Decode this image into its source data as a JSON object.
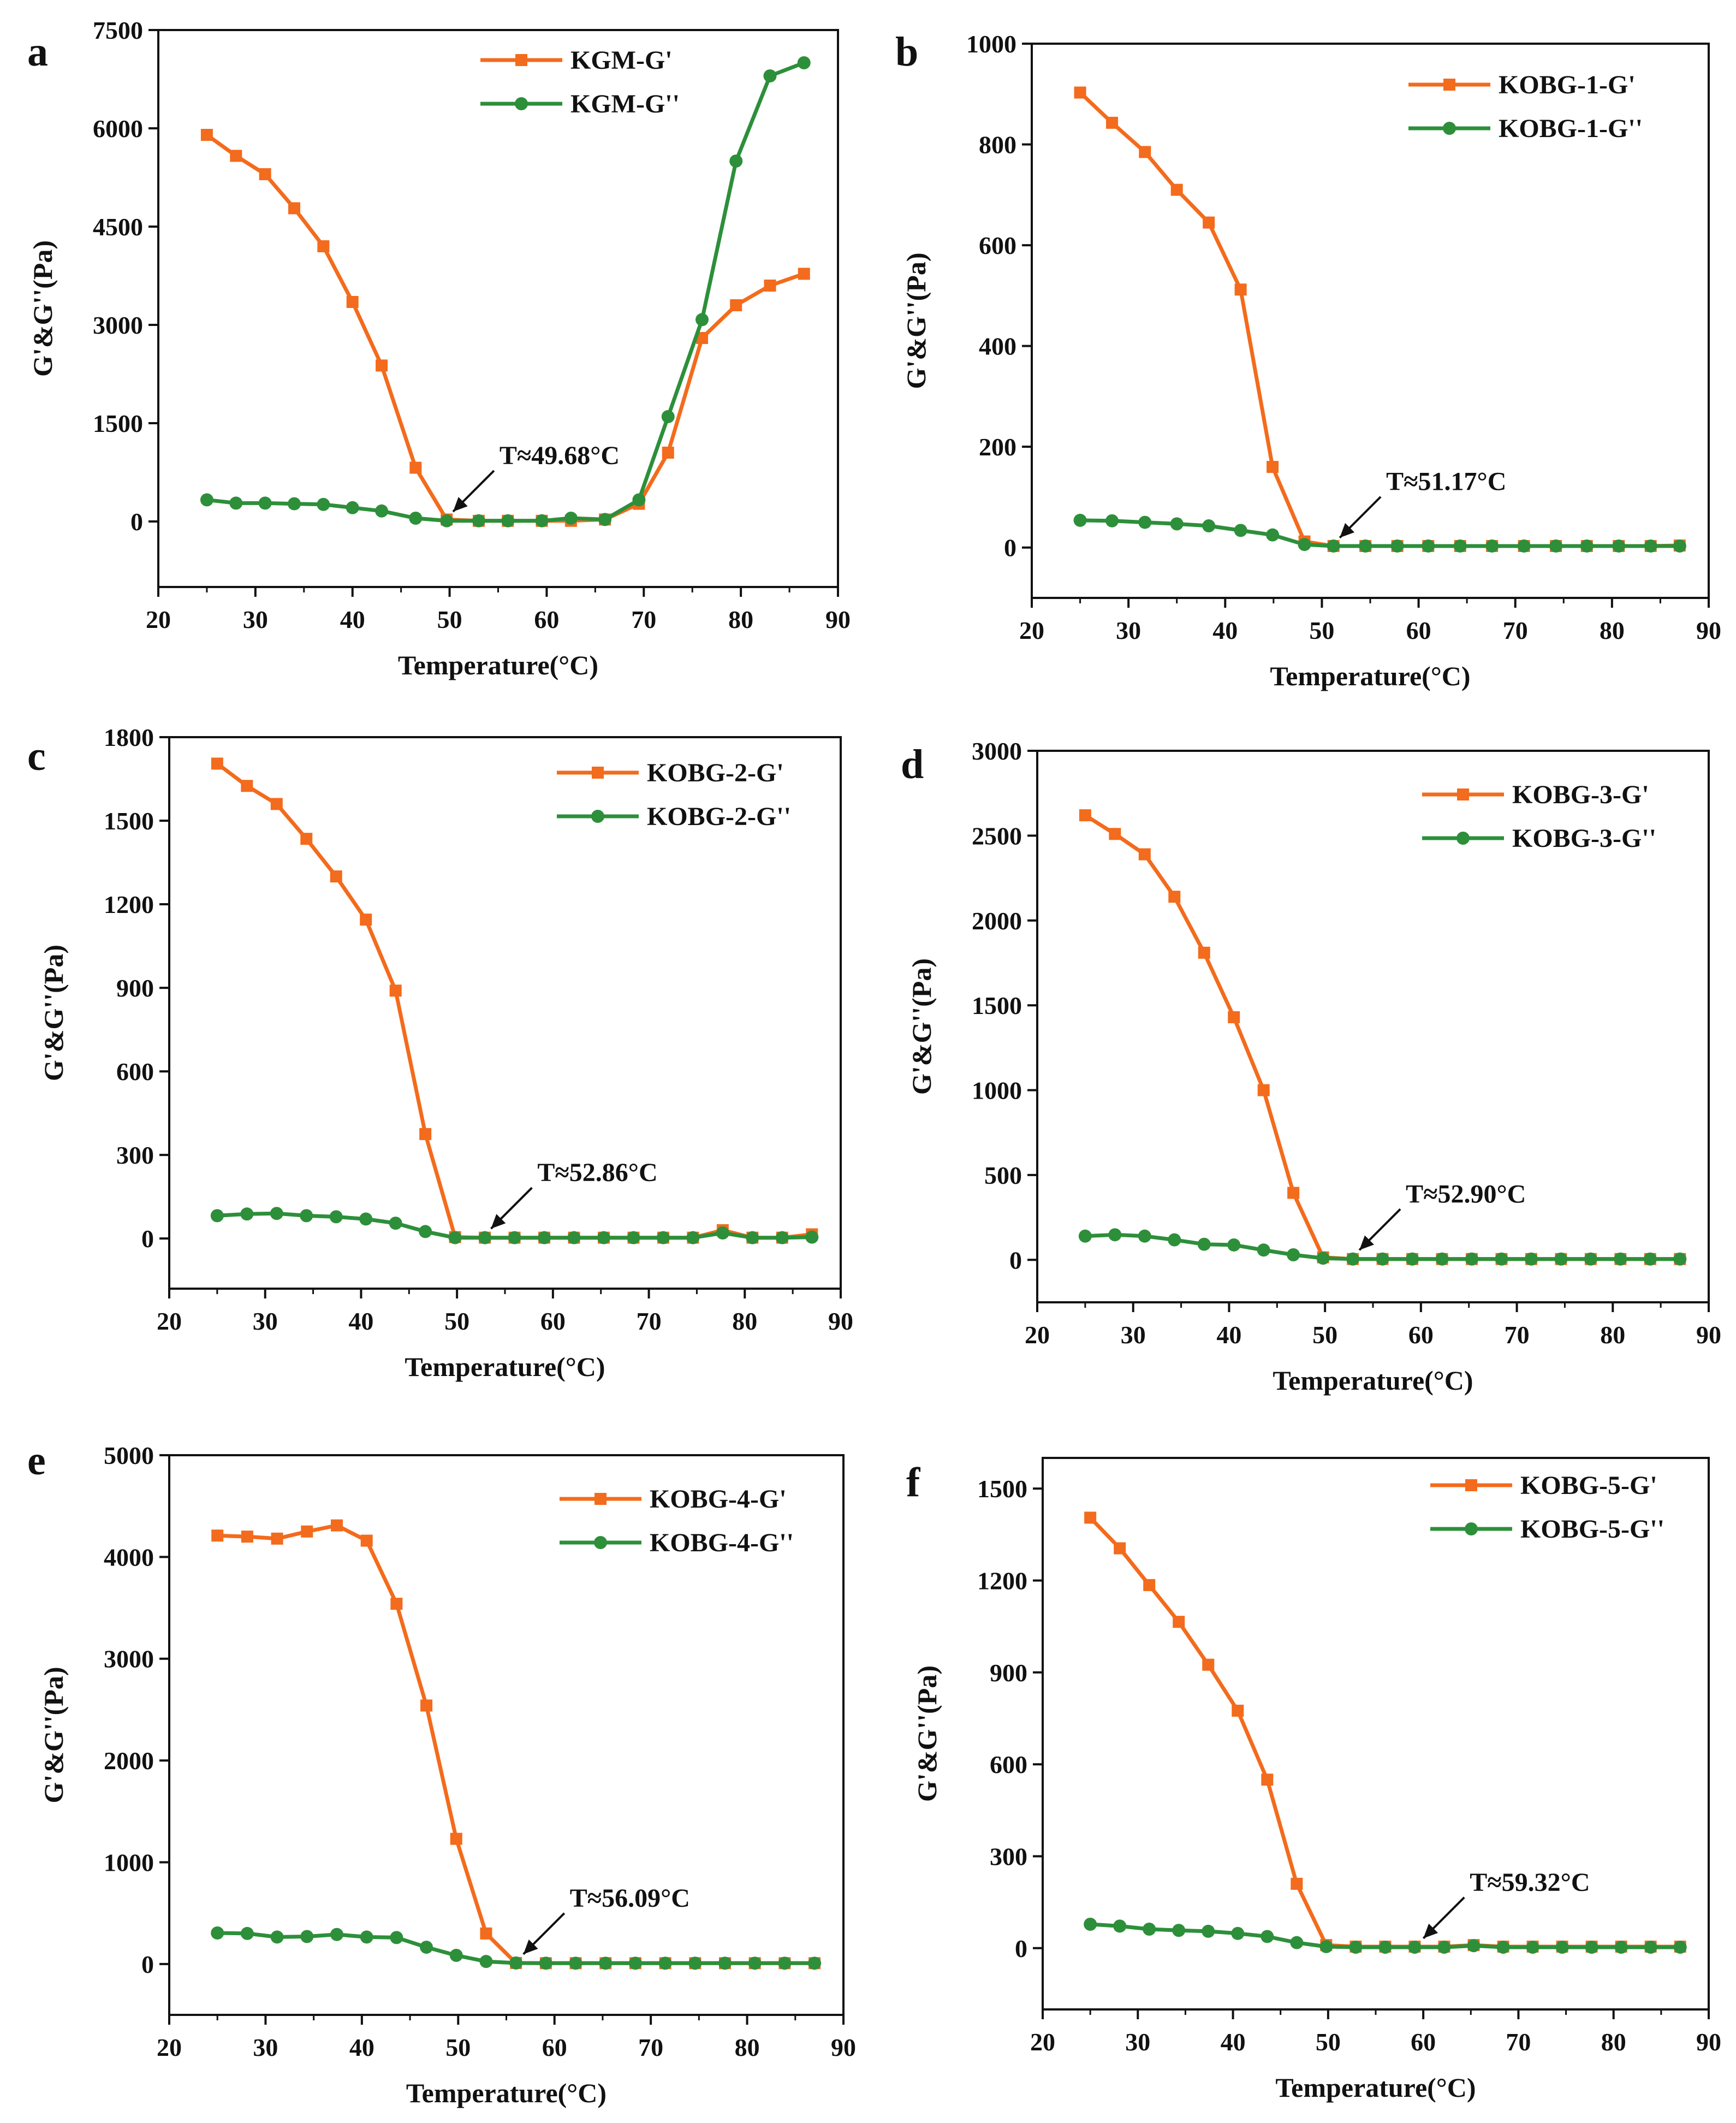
{
  "figure": {
    "colors": {
      "g_prime": "#f36b1c",
      "g_double_prime": "#2d8f3a",
      "axis": "#111111"
    },
    "panels": [
      {
        "letter": "a"
      },
      {
        "letter": "b"
      },
      {
        "letter": "c"
      },
      {
        "letter": "d"
      },
      {
        "letter": "e"
      },
      {
        "letter": "f"
      }
    ]
  },
  "chart_data": [
    {
      "type": "line",
      "panel": "a",
      "xlabel": "Temperature(°C)",
      "ylabel": "G'&G''(Pa)",
      "xlim": [
        20,
        90
      ],
      "ylim": [
        -1000,
        7500
      ],
      "xticks": [
        20,
        30,
        40,
        50,
        60,
        70,
        80,
        90
      ],
      "yticks": [
        0,
        1500,
        3000,
        4500,
        6000,
        7500
      ],
      "legend_position": "top-right",
      "annotation": {
        "text": "T≈49.68°C",
        "x": 49.68,
        "y": 0
      },
      "series": [
        {
          "name": "KGM-G'",
          "marker": "square",
          "x": [
            25,
            28,
            31,
            34,
            37,
            40,
            43,
            46.5,
            49.7,
            53,
            56,
            59.5,
            62.5,
            66,
            69.5,
            72.5,
            76,
            79.5,
            83,
            86.5
          ],
          "y": [
            5900,
            5580,
            5300,
            4780,
            4200,
            3350,
            2380,
            820,
            30,
            10,
            10,
            10,
            10,
            30,
            270,
            1050,
            2800,
            3300,
            3600,
            3780
          ]
        },
        {
          "name": "KGM-G''",
          "marker": "circle",
          "x": [
            25,
            28,
            31,
            34,
            37,
            40,
            43,
            46.5,
            49.7,
            53,
            56,
            59.5,
            62.5,
            66,
            69.5,
            72.5,
            76,
            79.5,
            83,
            86.5
          ],
          "y": [
            330,
            280,
            280,
            270,
            260,
            210,
            160,
            50,
            10,
            10,
            10,
            10,
            50,
            30,
            330,
            1600,
            3080,
            5500,
            6800,
            7000
          ]
        }
      ]
    },
    {
      "type": "line",
      "panel": "b",
      "xlabel": "Temperature(°C)",
      "ylabel": "G'&G''(Pa)",
      "xlim": [
        20,
        90
      ],
      "ylim": [
        -100,
        1000
      ],
      "xticks": [
        20,
        30,
        40,
        50,
        60,
        70,
        80,
        90
      ],
      "yticks": [
        0,
        200,
        400,
        600,
        800,
        1000
      ],
      "legend_position": "top-right",
      "annotation": {
        "text": "T≈51.17°C",
        "x": 51.17,
        "y": 0
      },
      "series": [
        {
          "name": "KOBG-1-G'",
          "marker": "square",
          "x": [
            25,
            28.3,
            31.7,
            35,
            38.3,
            41.6,
            44.9,
            48.2,
            51.2,
            54.5,
            57.8,
            61,
            64.3,
            67.6,
            70.9,
            74.2,
            77.4,
            80.7,
            84,
            87
          ],
          "y": [
            903,
            843,
            785,
            710,
            645,
            512,
            160,
            12,
            3,
            3,
            3,
            3,
            3,
            3,
            3,
            3,
            3,
            3,
            3,
            4
          ]
        },
        {
          "name": "KOBG-1-G''",
          "marker": "circle",
          "x": [
            25,
            28.3,
            31.7,
            35,
            38.3,
            41.6,
            44.9,
            48.2,
            51.2,
            54.5,
            57.8,
            61,
            64.3,
            67.6,
            70.9,
            74.2,
            77.4,
            80.7,
            84,
            87
          ],
          "y": [
            54,
            53,
            50,
            47,
            43,
            34,
            25,
            6,
            3,
            3,
            3,
            3,
            3,
            3,
            3,
            3,
            3,
            3,
            3,
            3
          ]
        }
      ]
    },
    {
      "type": "line",
      "panel": "c",
      "xlabel": "Temperature(°C)",
      "ylabel": "G'&G''(Pa)",
      "xlim": [
        20,
        90
      ],
      "ylim": [
        -180,
        1800
      ],
      "xticks": [
        20,
        30,
        40,
        50,
        60,
        70,
        80,
        90
      ],
      "yticks": [
        0,
        300,
        600,
        900,
        1200,
        1500,
        1800
      ],
      "legend_position": "top-right",
      "annotation": {
        "text": "T≈52.86°C",
        "x": 52.86,
        "y": 0
      },
      "series": [
        {
          "name": "KOBG-2-G'",
          "marker": "square",
          "x": [
            25,
            28.1,
            31.2,
            34.3,
            37.4,
            40.5,
            43.6,
            46.7,
            49.8,
            52.9,
            56,
            59.1,
            62.2,
            65.3,
            68.4,
            71.5,
            74.6,
            77.7,
            80.8,
            83.9,
            87
          ],
          "y": [
            1705,
            1625,
            1560,
            1435,
            1300,
            1145,
            890,
            375,
            5,
            3,
            3,
            3,
            3,
            3,
            3,
            3,
            3,
            30,
            3,
            3,
            15
          ]
        },
        {
          "name": "KOBG-2-G''",
          "marker": "circle",
          "x": [
            25,
            28.1,
            31.2,
            34.3,
            37.4,
            40.5,
            43.6,
            46.7,
            49.8,
            52.9,
            56,
            59.1,
            62.2,
            65.3,
            68.4,
            71.5,
            74.6,
            77.7,
            80.8,
            83.9,
            87
          ],
          "y": [
            82,
            88,
            90,
            82,
            78,
            70,
            55,
            25,
            3,
            3,
            3,
            3,
            3,
            3,
            3,
            3,
            3,
            20,
            3,
            3,
            5
          ]
        }
      ]
    },
    {
      "type": "line",
      "panel": "d",
      "xlabel": "Temperature(°C)",
      "ylabel": "G'&G''(Pa)",
      "xlim": [
        20,
        90
      ],
      "ylim": [
        -250,
        3000
      ],
      "xticks": [
        20,
        30,
        40,
        50,
        60,
        70,
        80,
        90
      ],
      "yticks": [
        0,
        500,
        1000,
        1500,
        2000,
        2500,
        3000
      ],
      "legend_position": "top-right",
      "annotation": {
        "text": "T≈52.90°C",
        "x": 52.9,
        "y": 0
      },
      "series": [
        {
          "name": "KOBG-3-G'",
          "marker": "square",
          "x": [
            25,
            28.1,
            31.2,
            34.3,
            37.4,
            40.5,
            43.6,
            46.7,
            49.8,
            52.9,
            56,
            59.1,
            62.2,
            65.3,
            68.4,
            71.5,
            74.6,
            77.7,
            80.8,
            83.9,
            87
          ],
          "y": [
            2620,
            2510,
            2390,
            2140,
            1810,
            1430,
            1000,
            395,
            15,
            5,
            5,
            5,
            5,
            5,
            5,
            5,
            5,
            5,
            5,
            5,
            5
          ]
        },
        {
          "name": "KOBG-3-G''",
          "marker": "circle",
          "x": [
            25,
            28.1,
            31.2,
            34.3,
            37.4,
            40.5,
            43.6,
            46.7,
            49.8,
            52.9,
            56,
            59.1,
            62.2,
            65.3,
            68.4,
            71.5,
            74.6,
            77.7,
            80.8,
            83.9,
            87
          ],
          "y": [
            140,
            148,
            140,
            118,
            92,
            88,
            58,
            30,
            10,
            5,
            5,
            5,
            5,
            5,
            5,
            5,
            5,
            5,
            5,
            5,
            5
          ]
        }
      ]
    },
    {
      "type": "line",
      "panel": "e",
      "xlabel": "Temperature(°C)",
      "ylabel": "G'&G''(Pa)",
      "xlim": [
        20,
        90
      ],
      "ylim": [
        -500,
        5000
      ],
      "xticks": [
        20,
        30,
        40,
        50,
        60,
        70,
        80,
        90
      ],
      "yticks": [
        0,
        1000,
        2000,
        3000,
        4000,
        5000
      ],
      "legend_position": "top-right",
      "annotation": {
        "text": "T≈56.09°C",
        "x": 56.09,
        "y": 0
      },
      "series": [
        {
          "name": "KOBG-4-G'",
          "marker": "square",
          "x": [
            25,
            28.1,
            31.2,
            34.3,
            37.4,
            40.5,
            43.6,
            46.7,
            49.8,
            52.9,
            56,
            59.1,
            62.2,
            65.3,
            68.4,
            71.5,
            74.6,
            77.7,
            80.8,
            83.9,
            87
          ],
          "y": [
            4210,
            4200,
            4180,
            4250,
            4310,
            4160,
            3540,
            2540,
            1230,
            300,
            10,
            8,
            8,
            8,
            8,
            8,
            8,
            8,
            8,
            8,
            8
          ]
        },
        {
          "name": "KOBG-4-G''",
          "marker": "circle",
          "x": [
            25,
            28.1,
            31.2,
            34.3,
            37.4,
            40.5,
            43.6,
            46.7,
            49.8,
            52.9,
            56,
            59.1,
            62.2,
            65.3,
            68.4,
            71.5,
            74.6,
            77.7,
            80.8,
            83.9,
            87
          ],
          "y": [
            305,
            300,
            265,
            270,
            290,
            265,
            260,
            165,
            85,
            25,
            10,
            8,
            8,
            8,
            8,
            8,
            8,
            8,
            8,
            8,
            8
          ]
        }
      ]
    },
    {
      "type": "line",
      "panel": "f",
      "xlabel": "Temperature(°C)",
      "ylabel": "G'&G''(Pa)",
      "xlim": [
        20,
        90
      ],
      "ylim": [
        -200,
        1600
      ],
      "xticks": [
        20,
        30,
        40,
        50,
        60,
        70,
        80,
        90
      ],
      "yticks": [
        0,
        300,
        600,
        900,
        1200,
        1500
      ],
      "legend_position": "top-right",
      "annotation": {
        "text": "T≈59.32°C",
        "x": 59.32,
        "y": 0
      },
      "series": [
        {
          "name": "KOBG-5-G'",
          "marker": "square",
          "x": [
            25,
            28.1,
            31.2,
            34.3,
            37.4,
            40.5,
            43.6,
            46.7,
            49.8,
            52.9,
            56,
            59.1,
            62.2,
            65.3,
            68.4,
            71.5,
            74.6,
            77.7,
            80.8,
            83.9,
            87
          ],
          "y": [
            1405,
            1305,
            1185,
            1065,
            925,
            775,
            550,
            210,
            10,
            5,
            5,
            5,
            5,
            10,
            5,
            5,
            5,
            5,
            5,
            5,
            5
          ]
        },
        {
          "name": "KOBG-5-G''",
          "marker": "circle",
          "x": [
            25,
            28.1,
            31.2,
            34.3,
            37.4,
            40.5,
            43.6,
            46.7,
            49.8,
            52.9,
            56,
            59.1,
            62.2,
            65.3,
            68.4,
            71.5,
            74.6,
            77.7,
            80.8,
            83.9,
            87
          ],
          "y": [
            78,
            72,
            62,
            58,
            55,
            48,
            38,
            18,
            5,
            3,
            3,
            3,
            3,
            8,
            3,
            3,
            3,
            3,
            3,
            3,
            3
          ]
        }
      ]
    }
  ]
}
